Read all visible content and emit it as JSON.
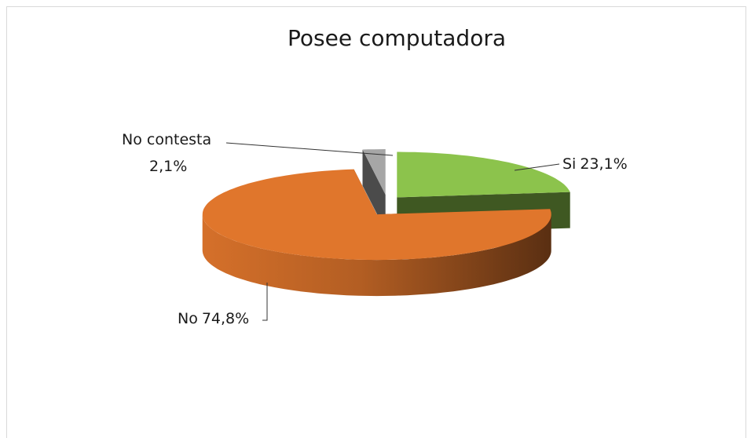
{
  "chart_data": {
    "type": "pie",
    "title": "Posee computadora",
    "categories": [
      "Si",
      "No",
      "No contesta"
    ],
    "values": [
      23.1,
      74.8,
      2.1
    ],
    "value_labels": [
      "23,1%",
      "74,8%",
      "2,1%"
    ],
    "colors": [
      "#8cc34c",
      "#e0762c",
      "#a6a6a6"
    ]
  }
}
